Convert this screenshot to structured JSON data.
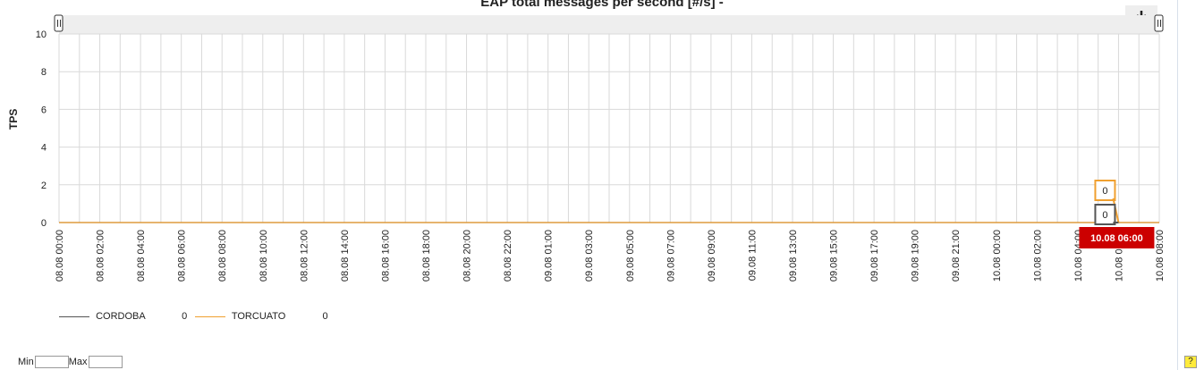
{
  "chart_data": {
    "type": "line",
    "title": "EAP total messages per second [#/s] -",
    "ylabel": "TPS",
    "ylim": [
      0,
      10
    ],
    "yticks": [
      "0",
      "2",
      "4",
      "6",
      "8",
      "10"
    ],
    "grid": true,
    "categories": [
      "08.08 00:00",
      "08.08 02:00",
      "08.08 04:00",
      "08.08 06:00",
      "08.08 08:00",
      "08.08 10:00",
      "08.08 12:00",
      "08.08 14:00",
      "08.08 16:00",
      "08.08 18:00",
      "08.08 20:00",
      "08.08 22:00",
      "09.08 01:00",
      "09.08 03:00",
      "09.08 05:00",
      "09.08 07:00",
      "09.08 09:00",
      "09.08 11:00",
      "09.08 13:00",
      "09.08 15:00",
      "09.08 17:00",
      "09.08 19:00",
      "09.08 21:00",
      "10.08 00:00",
      "10.08 02:00",
      "10.08 04:00",
      "10.08 06:00",
      "10.08 08:00"
    ],
    "series": [
      {
        "name": "CORDOBA",
        "color": "#555555",
        "values": [
          0,
          0,
          0,
          0,
          0,
          0,
          0,
          0,
          0,
          0,
          0,
          0,
          0,
          0,
          0,
          0,
          0,
          0,
          0,
          0,
          0,
          0,
          0,
          0,
          0,
          0,
          0,
          0
        ]
      },
      {
        "name": "TORCUATO",
        "color": "#f0a030",
        "values": [
          0,
          0,
          0,
          0,
          0,
          0,
          0,
          0,
          0,
          0,
          0,
          0,
          0,
          0,
          0,
          0,
          0,
          0,
          0,
          0,
          0,
          0,
          0,
          0,
          0,
          0,
          0,
          0
        ]
      }
    ],
    "legend": [
      {
        "name": "CORDOBA",
        "value": "0",
        "color": "#555555"
      },
      {
        "name": "TORCUATO",
        "value": "0",
        "color": "#f0a030"
      }
    ],
    "tooltip": {
      "x_label": "10.08 06:00",
      "values": [
        "0",
        "0"
      ],
      "background": "#cc0000"
    }
  },
  "controls": {
    "min_label": "Min",
    "max_label": "Max",
    "help_label": "?",
    "download_icon": "download-icon"
  }
}
